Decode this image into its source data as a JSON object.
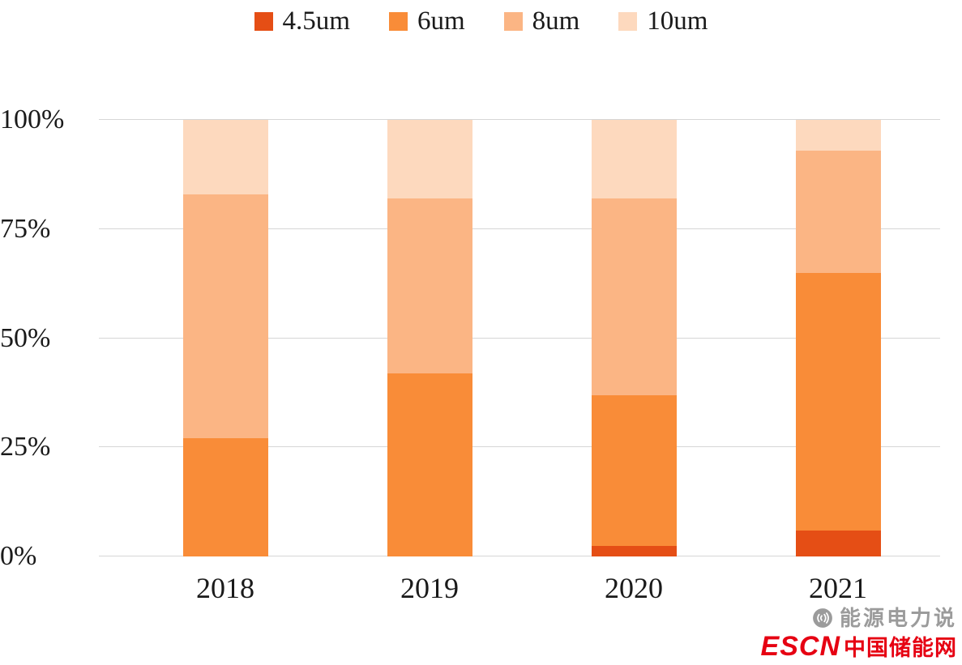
{
  "chart_data": {
    "type": "bar",
    "variant": "stacked-100",
    "categories": [
      "2018",
      "2019",
      "2020",
      "2021"
    ],
    "series": [
      {
        "name": "4.5um",
        "color": "#E54E15",
        "values": [
          0,
          0,
          2.5,
          6
        ]
      },
      {
        "name": "6um",
        "color": "#F98C38",
        "values": [
          27,
          42,
          34.5,
          59
        ]
      },
      {
        "name": "8um",
        "color": "#FBB584",
        "values": [
          56,
          40,
          45,
          28
        ]
      },
      {
        "name": "10um",
        "color": "#FDD9BE",
        "values": [
          17,
          18,
          18,
          7
        ]
      }
    ],
    "title": "",
    "xlabel": "",
    "ylabel": "",
    "yticks": [
      "0%",
      "25%",
      "50%",
      "75%",
      "100%"
    ],
    "ylim": [
      0,
      100
    ],
    "grid": true,
    "gridline_color": "#D6D6D6",
    "legend_position": "top"
  },
  "watermark": {
    "brand": "能源电力说",
    "logo": "ESCN",
    "site": "中国储能网",
    "brand_color": "#9b9b9b",
    "accent_color": "#e60012"
  }
}
